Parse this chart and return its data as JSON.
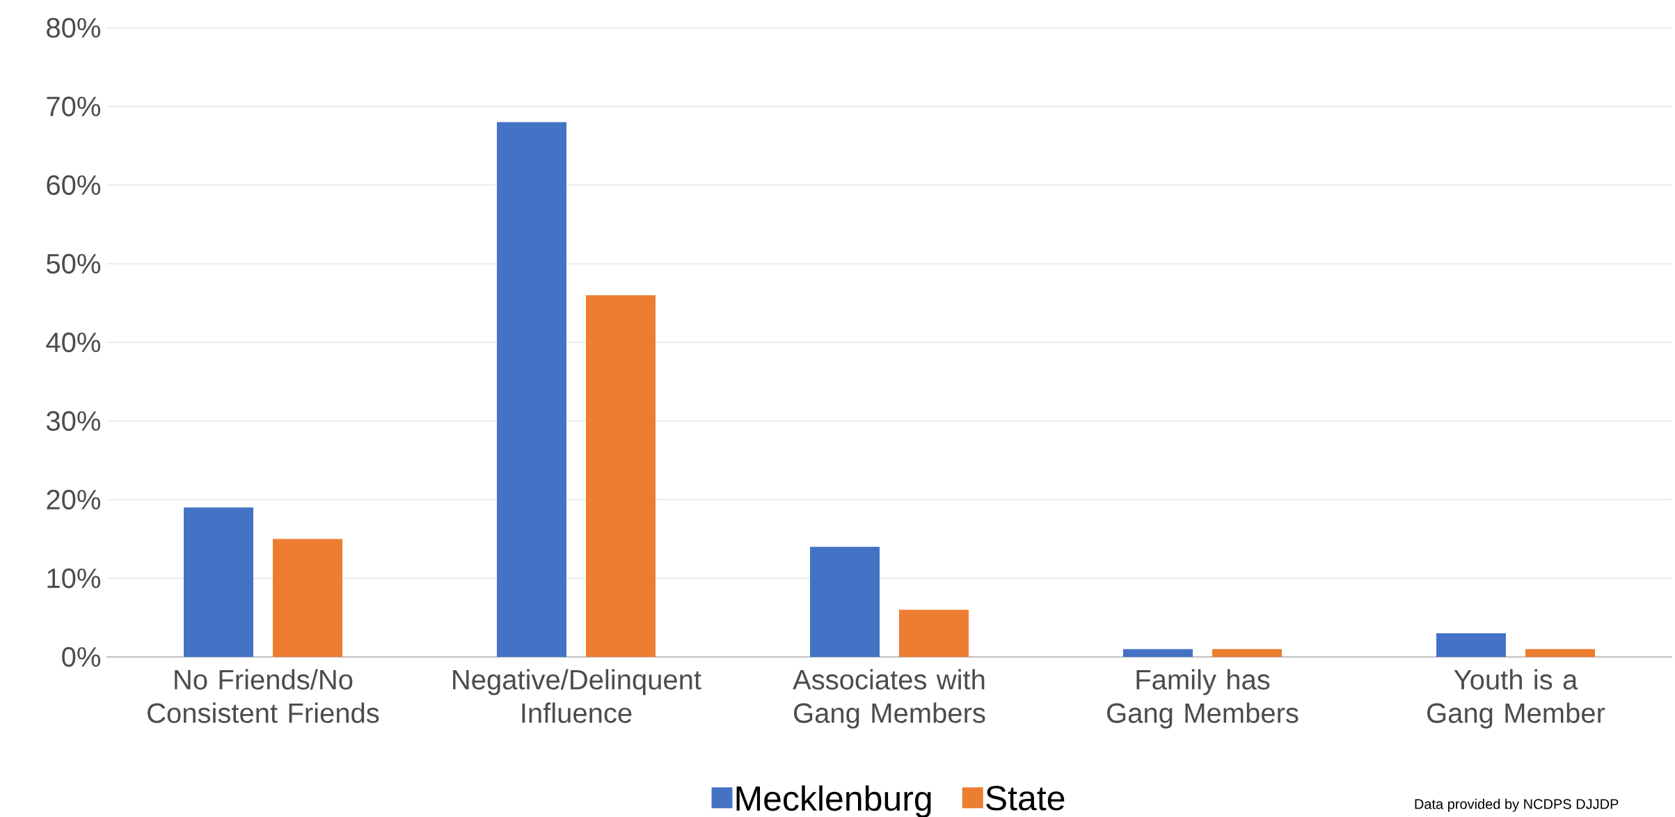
{
  "chart_data": {
    "type": "bar",
    "categories": [
      "No Friends/No Consistent Friends",
      "Negative/Delinquent Influence",
      "Associates with Gang Members",
      "Family has Gang Members",
      "Youth is a Gang Member"
    ],
    "series": [
      {
        "name": "Mecklenburg",
        "color": "#4472c4",
        "values": [
          19,
          68,
          14,
          1,
          3
        ]
      },
      {
        "name": "State",
        "color": "#ed7d31",
        "values": [
          15,
          46,
          6,
          1,
          1
        ]
      }
    ],
    "ylim": [
      0,
      80
    ],
    "yticks": [
      {
        "value": 0,
        "label": "0%"
      },
      {
        "value": 10,
        "label": "10%"
      },
      {
        "value": 20,
        "label": "20%"
      },
      {
        "value": 30,
        "label": "30%"
      },
      {
        "value": 40,
        "label": "40%"
      },
      {
        "value": 50,
        "label": "50%"
      },
      {
        "value": 60,
        "label": "60%"
      },
      {
        "value": 70,
        "label": "70%"
      },
      {
        "value": 80,
        "label": "80%"
      }
    ],
    "grid": "y",
    "legend": "bottom",
    "annotations": [
      "Data provided by NCDPS DJJDP"
    ]
  }
}
